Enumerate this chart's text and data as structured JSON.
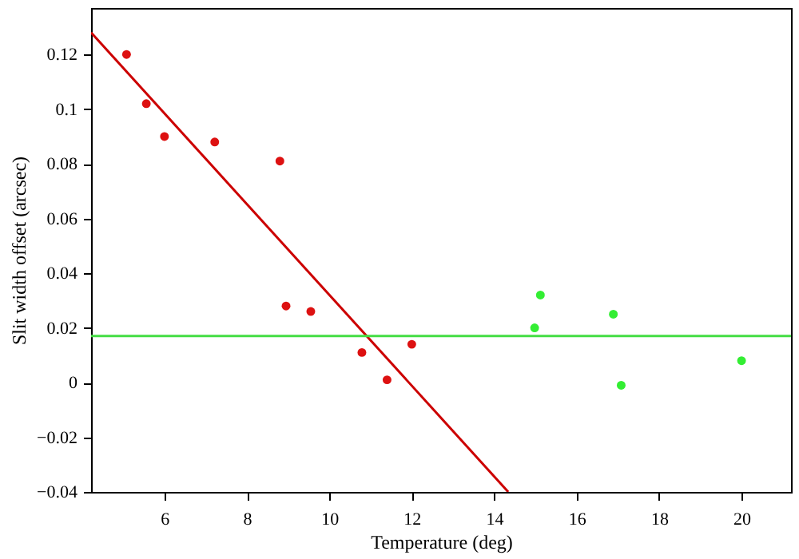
{
  "chart_data": {
    "type": "scatter",
    "xlabel": "Temperature (deg)",
    "ylabel": "Slit width offset (arcsec)",
    "xlim": [
      4.22,
      21.2
    ],
    "xticks": [
      6,
      8,
      10,
      12,
      14,
      16,
      18,
      20
    ],
    "ylim": [
      -0.04,
      0.137
    ],
    "yticks": [
      -0.04,
      -0.02,
      0,
      0.02,
      0.04,
      0.06,
      0.08,
      0.1,
      0.12
    ],
    "grid": false,
    "marker": "circle",
    "series": [
      {
        "color": "#dd1111",
        "x": [
          5.08,
          5.56,
          6.0,
          7.22,
          8.8,
          8.95,
          9.55,
          10.79,
          11.4,
          12.0
        ],
        "values": [
          0.12,
          0.102,
          0.09,
          0.088,
          0.081,
          0.028,
          0.026,
          0.011,
          0.001,
          0.014
        ]
      },
      {
        "color": "#33ee33",
        "x": [
          14.98,
          15.12,
          16.89,
          17.08,
          20.0
        ],
        "values": [
          0.02,
          0.032,
          0.025,
          -0.001,
          0.008
        ]
      },
      {
        "type": "line",
        "marker": "none",
        "color": "#cc0000",
        "x": [
          4.22,
          14.34
        ],
        "values": [
          0.128,
          -0.04
        ]
      },
      {
        "type": "line",
        "marker": "none",
        "color": "#44dd44",
        "x": [
          4.22,
          21.2
        ],
        "values": [
          0.017,
          0.017
        ]
      }
    ]
  }
}
